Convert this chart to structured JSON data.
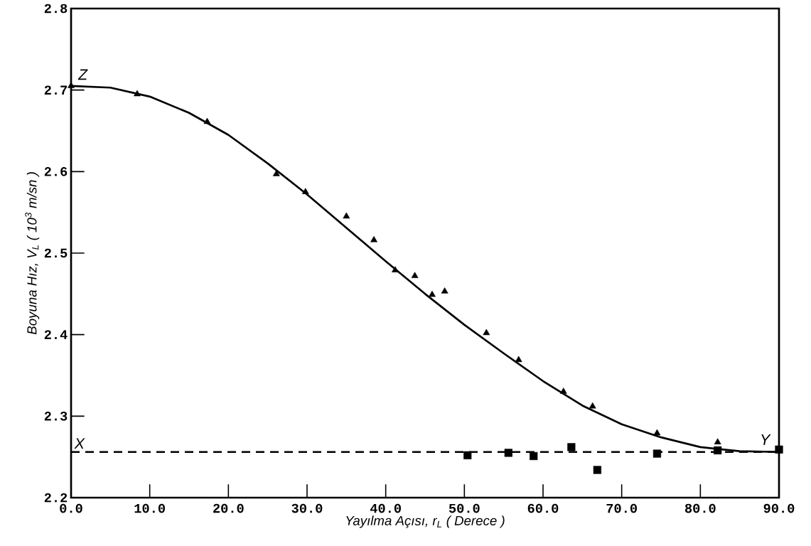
{
  "chart_data": {
    "type": "scatter",
    "xlabel": "Yayılma Açısı, r$_{L}$ ( Derece )",
    "ylabel": "Boyuna Hız, V$_{L}$ ( 10$^{3}$ m/sn )",
    "xlim": [
      0,
      90
    ],
    "ylim": [
      2.2,
      2.8
    ],
    "xticks": [
      {
        "value": 0,
        "label": "0.0"
      },
      {
        "value": 10,
        "label": "10.0"
      },
      {
        "value": 20,
        "label": "20.0"
      },
      {
        "value": 30,
        "label": "30.0"
      },
      {
        "value": 40,
        "label": "40.0"
      },
      {
        "value": 50,
        "label": "50.0"
      },
      {
        "value": 60,
        "label": "60.0"
      },
      {
        "value": 70,
        "label": "70.0"
      },
      {
        "value": 80,
        "label": "80.0"
      },
      {
        "value": 90,
        "label": "90.0"
      }
    ],
    "yticks": [
      2.2,
      2.3,
      2.4,
      2.5,
      2.6,
      2.7,
      2.8
    ],
    "series": [
      {
        "type": "line",
        "color": "#000000",
        "marker": "none",
        "line_style": "solid",
        "x": [
          0,
          5,
          10,
          15,
          20,
          25,
          30,
          35,
          40,
          45,
          50,
          55,
          60,
          65,
          70,
          75,
          80,
          85,
          90
        ],
        "values": [
          2.705,
          2.703,
          2.692,
          2.672,
          2.645,
          2.61,
          2.572,
          2.531,
          2.49,
          2.45,
          2.412,
          2.377,
          2.343,
          2.313,
          2.29,
          2.274,
          2.262,
          2.257,
          2.256
        ]
      },
      {
        "type": "scatter",
        "color": "#000000",
        "marker": "triangle",
        "x": [
          0,
          8.4,
          17.3,
          26.1,
          29.8,
          35.0,
          38.5,
          41.2,
          43.7,
          45.9,
          47.5,
          52.8,
          56.9,
          62.6,
          66.3,
          74.5,
          82.2
        ],
        "values": [
          2.705,
          2.695,
          2.661,
          2.597,
          2.575,
          2.545,
          2.516,
          2.479,
          2.472,
          2.449,
          2.453,
          2.402,
          2.369,
          2.33,
          2.312,
          2.279,
          2.268
        ]
      },
      {
        "type": "scatter",
        "color": "#000000",
        "marker": "square",
        "x": [
          50.4,
          55.6,
          58.8,
          63.6,
          66.9,
          74.5,
          82.2,
          90
        ],
        "values": [
          2.252,
          2.255,
          2.251,
          2.262,
          2.234,
          2.254,
          2.258,
          2.259
        ]
      }
    ],
    "ref_lines": [
      {
        "axis": "y",
        "value": 2.256,
        "label": "X",
        "color": "#000000",
        "line_style": "dashed"
      }
    ],
    "annotations": [
      {
        "text": "Z",
        "x": 0,
        "y": 2.705
      },
      {
        "text": "Y",
        "x": 90,
        "y": 2.256
      }
    ]
  }
}
